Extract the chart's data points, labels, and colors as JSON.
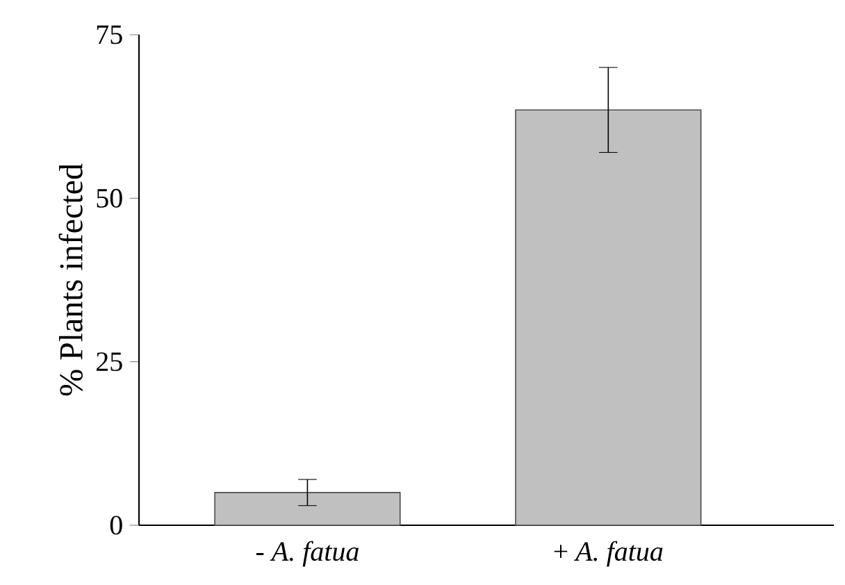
{
  "chart_data": {
    "type": "bar",
    "ylabel": "% Plants infected",
    "categories": [
      "- *A. fatua*",
      "+ *A. fatua*"
    ],
    "values": [
      5,
      63.5
    ],
    "errors": [
      2,
      6.5
    ],
    "color": "#c0c0c0",
    "ylim": [
      0,
      75
    ],
    "yticks": [
      0,
      25,
      50,
      75
    ],
    "grid": false
  }
}
